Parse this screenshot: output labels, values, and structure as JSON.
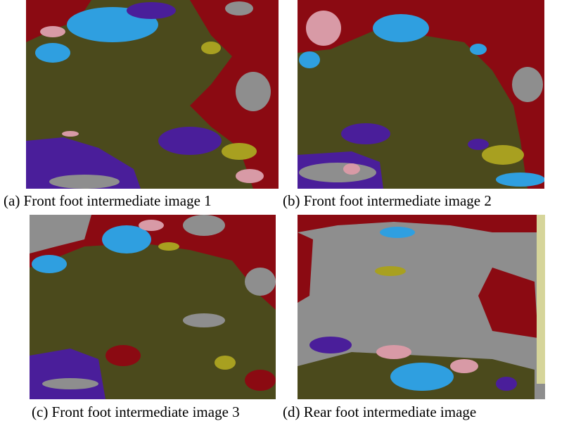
{
  "figures": [
    {
      "caption": "(a) Front foot intermediate image 1"
    },
    {
      "caption": "(b) Front foot intermediate image 2"
    },
    {
      "caption": "(c) Front foot intermediate image 3"
    },
    {
      "caption": "(d) Rear foot intermediate image"
    }
  ]
}
